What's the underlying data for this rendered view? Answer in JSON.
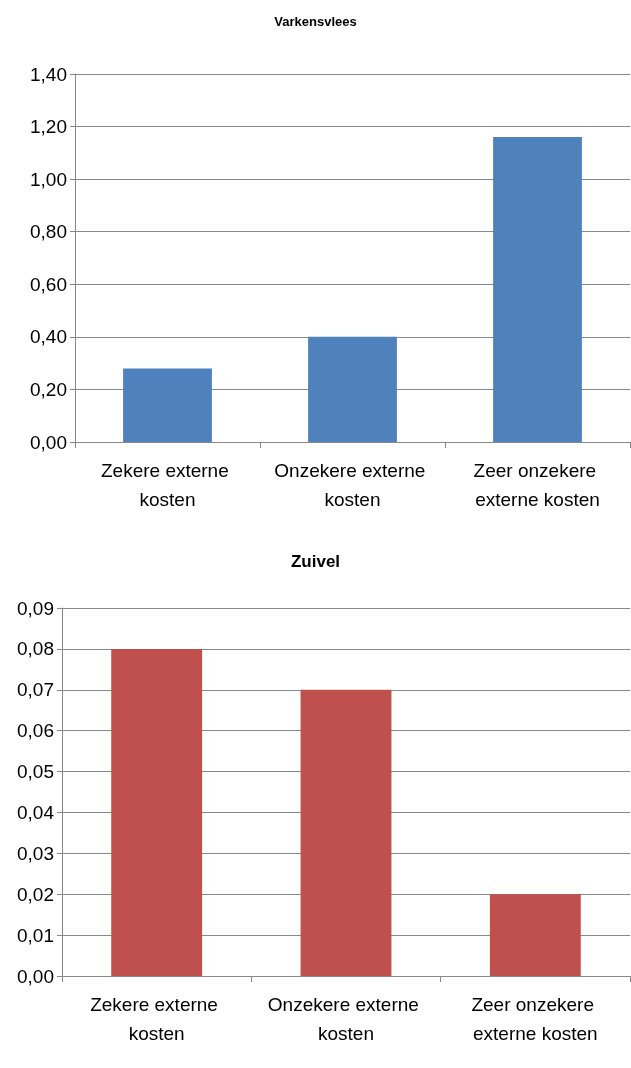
{
  "chart_data": [
    {
      "type": "bar",
      "title": "Varkensvlees",
      "categories": [
        "Zekere externe kosten",
        "Onzekere externe kosten",
        "Zeer onzekere externe kosten"
      ],
      "values": [
        0.28,
        0.4,
        1.16
      ],
      "color": "#4f81bd",
      "ylim": [
        0,
        1.4
      ],
      "yticks": [
        {
          "value": 0,
          "label": "0,00"
        },
        {
          "value": 0.2,
          "label": "0,20"
        },
        {
          "value": 0.4,
          "label": "0,40"
        },
        {
          "value": 0.6,
          "label": "0,60"
        },
        {
          "value": 0.8,
          "label": "0,80"
        },
        {
          "value": 1.0,
          "label": "1,00"
        },
        {
          "value": 1.2,
          "label": "1,20"
        },
        {
          "value": 1.4,
          "label": "1,40"
        }
      ],
      "grid": "y"
    },
    {
      "type": "bar",
      "title": "Zuivel",
      "categories": [
        "Zekere externe kosten",
        "Onzekere externe kosten",
        "Zeer onzekere externe kosten"
      ],
      "values": [
        0.08,
        0.07,
        0.02
      ],
      "color": "#c0504d",
      "ylim": [
        0,
        0.09
      ],
      "yticks": [
        {
          "value": 0,
          "label": "0,00"
        },
        {
          "value": 0.01,
          "label": "0,01"
        },
        {
          "value": 0.02,
          "label": "0,02"
        },
        {
          "value": 0.03,
          "label": "0,03"
        },
        {
          "value": 0.04,
          "label": "0,04"
        },
        {
          "value": 0.05,
          "label": "0,05"
        },
        {
          "value": 0.06,
          "label": "0,06"
        },
        {
          "value": 0.07,
          "label": "0,07"
        },
        {
          "value": 0.08,
          "label": "0,08"
        },
        {
          "value": 0.09,
          "label": "0,09"
        }
      ],
      "grid": "y"
    }
  ]
}
